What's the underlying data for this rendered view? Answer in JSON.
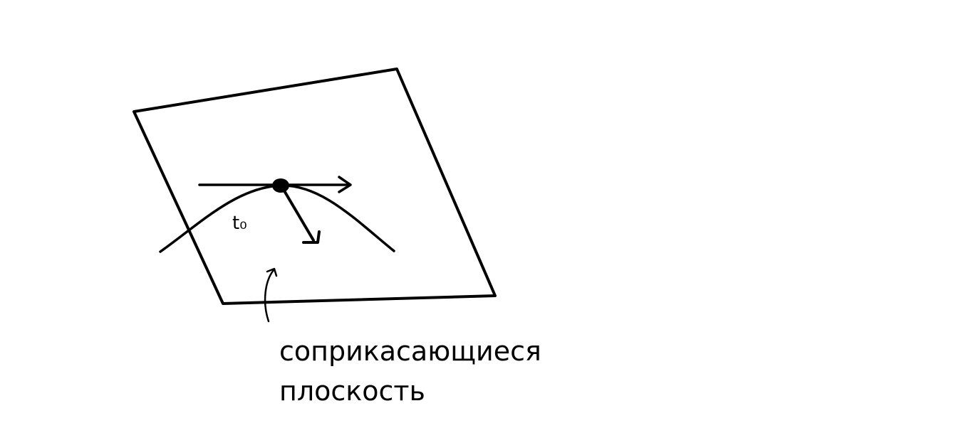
{
  "diagram": {
    "point_label": "t₀",
    "caption": {
      "line1": "соприкасающиеся",
      "line2": "плоскость"
    },
    "colors": {
      "stroke": "#000000",
      "background": "#ffffff"
    }
  }
}
